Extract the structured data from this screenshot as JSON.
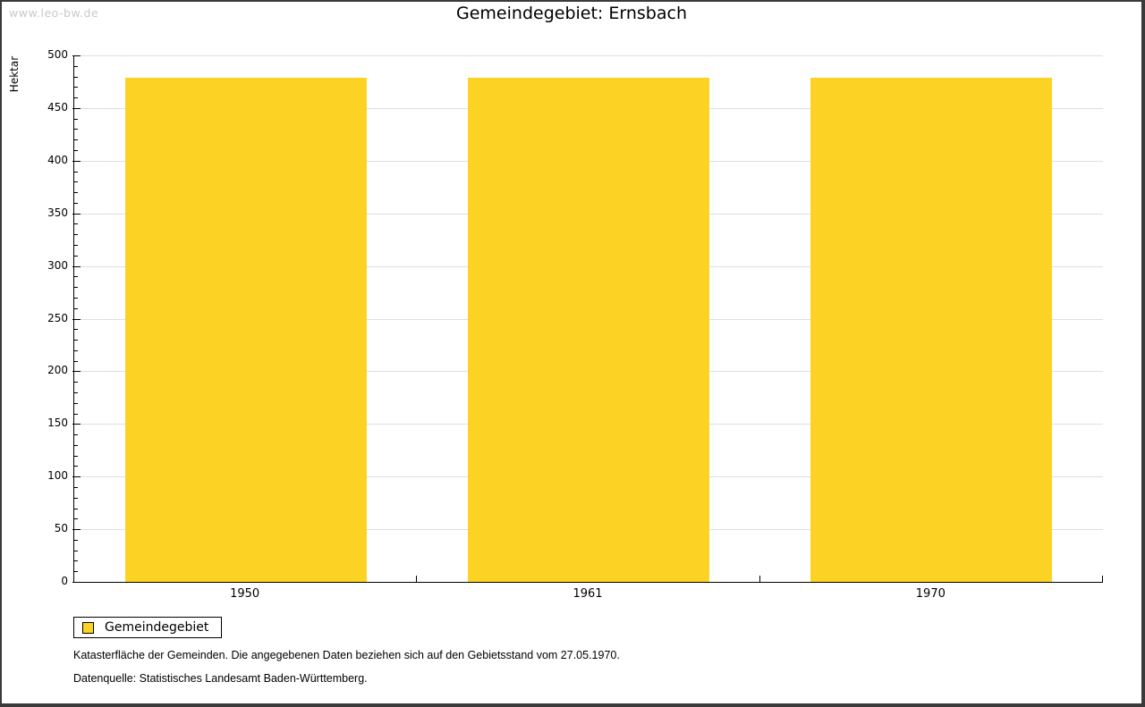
{
  "watermark": "www.leo-bw.de",
  "chart_data": {
    "type": "bar",
    "title": "Gemeindegebiet: Ernsbach",
    "ylabel": "Hektar",
    "xlabel": "",
    "categories": [
      "1950",
      "1961",
      "1970"
    ],
    "series": [
      {
        "name": "Gemeindegebiet",
        "values": [
          479,
          479,
          479
        ]
      }
    ],
    "ylim": [
      0,
      500
    ],
    "ytick_step": 50,
    "yminor_step": 10,
    "grid": true,
    "legend_position": "bottom-left"
  },
  "legend": {
    "label": "Gemeindegebiet",
    "swatch_color": "#FCD324"
  },
  "footnotes": [
    "Katasterfläche der Gemeinden. Die angegebenen Daten beziehen sich auf den Gebietsstand vom 27.05.1970.",
    "Datenquelle: Statistisches Landesamt Baden-Württemberg."
  ],
  "colors": {
    "bar": "#FCD324",
    "grid": "#DEDEDE",
    "axis": "#000000",
    "watermark": "#C9C9C9",
    "frame_border": "#3A3A3A"
  }
}
